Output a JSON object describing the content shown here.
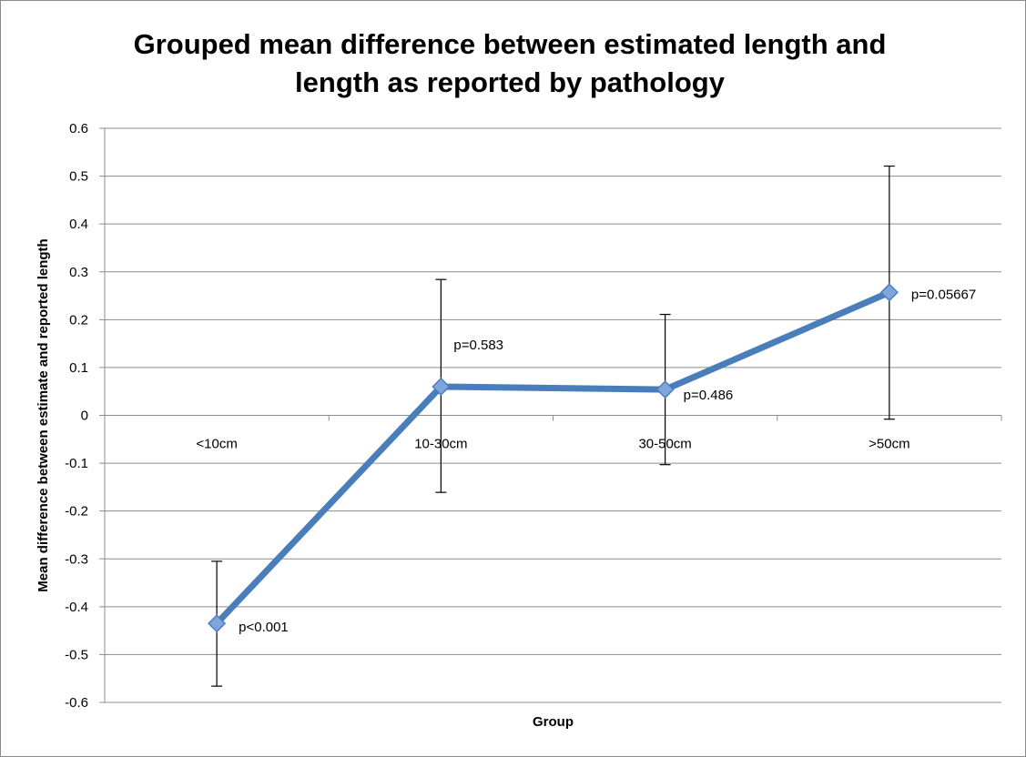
{
  "chart_data": {
    "type": "line",
    "title_lines": [
      "Grouped mean difference between estimated length and",
      "length as reported by pathology"
    ],
    "xlabel": "Group",
    "ylabel": "Mean difference between estimate and reported length",
    "categories": [
      "<10cm",
      "10-30cm",
      "30-50cm",
      ">50cm"
    ],
    "series": [
      {
        "values": [
          -0.435,
          0.06,
          0.054,
          0.257
        ],
        "error_upper": [
          -0.305,
          0.284,
          0.211,
          0.521
        ],
        "error_lower": [
          -0.566,
          -0.161,
          -0.103,
          -0.008
        ],
        "color": "#4a7ebb",
        "marker_color": "#7fa6dc"
      }
    ],
    "annotations": [
      "p<0.001",
      "p=0.583",
      "p=0.486",
      "p=0.05667"
    ],
    "ylim": [
      -0.6,
      0.6
    ],
    "ytick_step": 0.1,
    "yticks": [
      "0.6",
      "0.5",
      "0.4",
      "0.3",
      "0.2",
      "0.1",
      "0",
      "-0.1",
      "-0.2",
      "-0.3",
      "-0.4",
      "-0.5",
      "-0.6"
    ],
    "grid": true,
    "legend": "none"
  }
}
